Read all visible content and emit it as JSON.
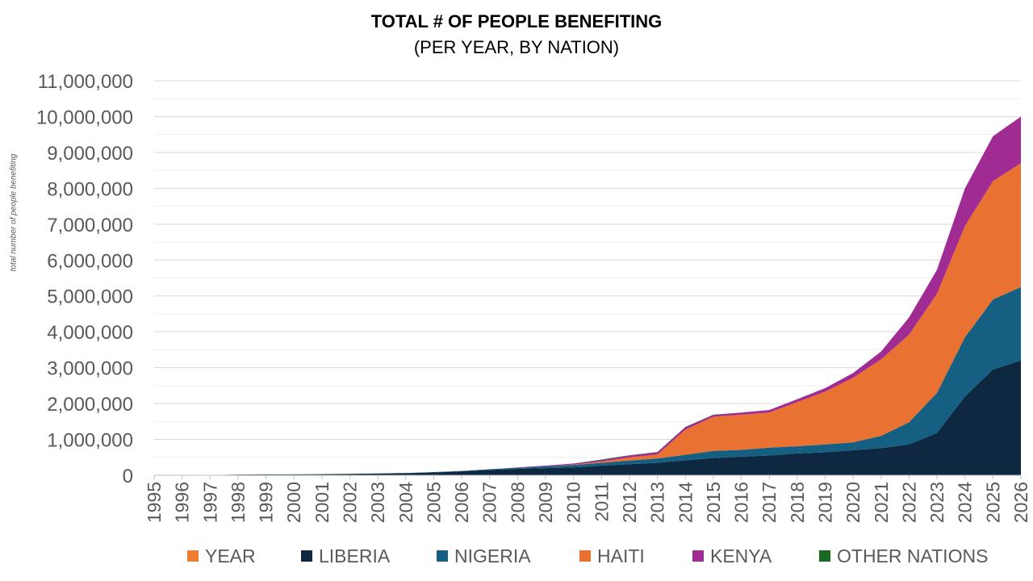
{
  "chart_data": {
    "type": "area",
    "stacked": true,
    "title": "TOTAL # OF PEOPLE BENEFITING",
    "subtitle": "(PER YEAR, BY NATION)",
    "ylabel": "total number of people benefiting",
    "xlabel": "",
    "ylim": [
      0,
      11000000
    ],
    "y_ticks": [
      "0",
      "1,000,000",
      "2,000,000",
      "3,000,000",
      "4,000,000",
      "5,000,000",
      "6,000,000",
      "7,000,000",
      "8,000,000",
      "9,000,000",
      "10,000,000",
      "11,000,000"
    ],
    "grid": true,
    "legend_position": "bottom",
    "categories": [
      "1995",
      "1996",
      "1997",
      "1998",
      "1999",
      "2000",
      "2001",
      "2002",
      "2003",
      "2004",
      "2005",
      "2006",
      "2007",
      "2008",
      "2009",
      "2010",
      "2011",
      "2012",
      "2013",
      "2014",
      "2015",
      "2016",
      "2017",
      "2018",
      "2019",
      "2020",
      "2021",
      "2022",
      "2023",
      "2024",
      "2025",
      "2026"
    ],
    "legend": [
      {
        "name": "YEAR",
        "color": "#ed7d31"
      },
      {
        "name": "LIBERIA",
        "color": "#0e2841"
      },
      {
        "name": "NIGERIA",
        "color": "#156082"
      },
      {
        "name": "HAITI",
        "color": "#e97132"
      },
      {
        "name": "KENYA",
        "color": "#a02b93"
      },
      {
        "name": "OTHER NATIONS",
        "color": "#196b24"
      }
    ],
    "series": [
      {
        "name": "LIBERIA",
        "color": "#0e2841",
        "values": [
          0,
          0,
          5000,
          20000,
          25000,
          25000,
          30000,
          40000,
          50000,
          60000,
          80000,
          110000,
          150000,
          180000,
          200000,
          220000,
          270000,
          310000,
          350000,
          420000,
          480000,
          520000,
          550000,
          610000,
          640000,
          700000,
          760000,
          860000,
          1180000,
          2200000,
          2950000,
          3200000
        ]
      },
      {
        "name": "NIGERIA",
        "color": "#156082",
        "values": [
          0,
          0,
          0,
          0,
          0,
          0,
          0,
          0,
          0,
          5000,
          10000,
          10000,
          20000,
          30000,
          50000,
          70000,
          80000,
          100000,
          120000,
          150000,
          200000,
          190000,
          220000,
          200000,
          220000,
          220000,
          340000,
          620000,
          1120000,
          1650000,
          1950000,
          2050000
        ]
      },
      {
        "name": "HAITI",
        "color": "#e97132",
        "values": [
          0,
          0,
          0,
          0,
          0,
          0,
          0,
          0,
          0,
          0,
          0,
          0,
          0,
          0,
          0,
          10000,
          30000,
          90000,
          110000,
          700000,
          950000,
          980000,
          980000,
          1230000,
          1470000,
          1800000,
          2130000,
          2440000,
          2760000,
          3100000,
          3300000,
          3450000
        ]
      },
      {
        "name": "KENYA",
        "color": "#a02b93",
        "values": [
          0,
          0,
          0,
          0,
          0,
          0,
          0,
          0,
          0,
          0,
          0,
          0,
          0,
          10000,
          20000,
          30000,
          40000,
          50000,
          60000,
          70000,
          50000,
          60000,
          70000,
          80000,
          100000,
          130000,
          220000,
          480000,
          670000,
          1050000,
          1250000,
          1300000
        ]
      },
      {
        "name": "OTHER NATIONS",
        "color": "#196b24",
        "values": [
          0,
          0,
          0,
          0,
          0,
          0,
          0,
          0,
          0,
          0,
          0,
          0,
          0,
          0,
          0,
          0,
          20000,
          10000,
          10000,
          10000,
          10000,
          0,
          0,
          0,
          0,
          0,
          0,
          0,
          0,
          0,
          0,
          0
        ]
      }
    ]
  }
}
